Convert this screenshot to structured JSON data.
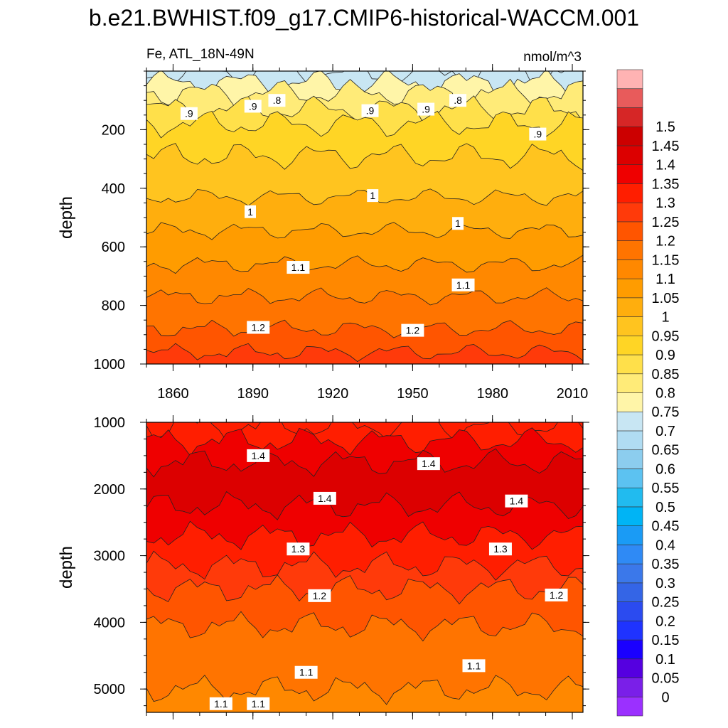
{
  "chart_data": {
    "type": "heatmap",
    "title": "b.e21.BWHIST.f09_g17.CMIP6-historical-WACCM.001",
    "variable_label": "Fe, ATL_18N-49N",
    "units": "nmol/m^3",
    "colorbar": {
      "levels": [
        "0",
        "0.05",
        "0.1",
        "0.15",
        "0.2",
        "0.25",
        "0.3",
        "0.35",
        "0.4",
        "0.45",
        "0.5",
        "0.55",
        "0.6",
        "0.65",
        "0.7",
        "0.75",
        "0.8",
        "0.85",
        "0.9",
        "0.95",
        "1",
        "1.05",
        "1.1",
        "1.15",
        "1.2",
        "1.25",
        "1.3",
        "1.35",
        "1.4",
        "1.45",
        "1.5"
      ],
      "colors": [
        "#9b30ff",
        "#7a1fe8",
        "#5500e0",
        "#1a00ff",
        "#1f33ff",
        "#2b4bf0",
        "#3465e6",
        "#3b78ea",
        "#2f8af5",
        "#1a9bf5",
        "#00b4f5",
        "#21bbef",
        "#5cc2f1",
        "#8ccdee",
        "#b0dcf2",
        "#c8e6f3",
        "#fff5a8",
        "#ffeb78",
        "#ffe04a",
        "#ffd525",
        "#ffc41f",
        "#ffae0d",
        "#ff9c00",
        "#ff8800",
        "#ff7400",
        "#ff5500",
        "#ff3a0a",
        "#ff1e00",
        "#ef0000",
        "#dc0000",
        "#cc0000",
        "#d62626",
        "#e85b5b",
        "#ffb3b3"
      ]
    },
    "x_axis": {
      "range": [
        1850,
        2014
      ],
      "ticks": [
        1860,
        1890,
        1920,
        1950,
        1980,
        2010
      ]
    },
    "panels": [
      {
        "name": "upper",
        "ylabel": "depth",
        "ylim": [
          0,
          1000
        ],
        "yticks": [
          200,
          400,
          600,
          800,
          1000
        ],
        "bands": [
          {
            "depth": 5,
            "value": 0.7
          },
          {
            "depth": 40,
            "value": 0.75
          },
          {
            "depth": 75,
            "value": 0.8
          },
          {
            "depth": 130,
            "value": 0.85
          },
          {
            "depth": 180,
            "value": 0.9
          },
          {
            "depth": 290,
            "value": 0.95
          },
          {
            "depth": 430,
            "value": 1.0
          },
          {
            "depth": 545,
            "value": 1.05
          },
          {
            "depth": 660,
            "value": 1.1
          },
          {
            "depth": 770,
            "value": 1.15
          },
          {
            "depth": 880,
            "value": 1.2
          },
          {
            "depth": 960,
            "value": 1.25
          }
        ],
        "contour_labels": [
          {
            "text": ".9",
            "x": 1866,
            "depth": 145
          },
          {
            "text": ".9",
            "x": 1890,
            "depth": 120
          },
          {
            "text": ".8",
            "x": 1899,
            "depth": 100
          },
          {
            "text": ".9",
            "x": 1934,
            "depth": 135
          },
          {
            "text": ".9",
            "x": 1955,
            "depth": 130
          },
          {
            "text": ".8",
            "x": 1967,
            "depth": 100
          },
          {
            "text": ".9",
            "x": 1997,
            "depth": 215
          },
          {
            "text": "1",
            "x": 1935,
            "depth": 425
          },
          {
            "text": "1",
            "x": 1889,
            "depth": 480
          },
          {
            "text": "1",
            "x": 1967,
            "depth": 520
          },
          {
            "text": "1.1",
            "x": 1907,
            "depth": 670
          },
          {
            "text": "1.1",
            "x": 1969,
            "depth": 730
          },
          {
            "text": "1.2",
            "x": 1892,
            "depth": 875
          },
          {
            "text": "1.2",
            "x": 1950,
            "depth": 885
          }
        ]
      },
      {
        "name": "lower",
        "ylabel": "depth",
        "ylim": [
          1000,
          5350
        ],
        "yticks": [
          1000,
          2000,
          3000,
          4000,
          5000
        ],
        "bands": [
          {
            "depth": 1060,
            "value": 1.3
          },
          {
            "depth": 1280,
            "value": 1.35
          },
          {
            "depth": 1600,
            "value": 1.4
          },
          {
            "depth": 2250,
            "value": 1.35
          },
          {
            "depth": 2700,
            "value": 1.3
          },
          {
            "depth": 3150,
            "value": 1.25
          },
          {
            "depth": 3500,
            "value": 1.2
          },
          {
            "depth": 4050,
            "value": 1.15
          },
          {
            "depth": 5000,
            "value": 1.1
          }
        ],
        "contour_labels": [
          {
            "text": "1.4",
            "x": 1892,
            "depth": 1500
          },
          {
            "text": "1.4",
            "x": 1956,
            "depth": 1620
          },
          {
            "text": "1.4",
            "x": 1917,
            "depth": 2140
          },
          {
            "text": "1.4",
            "x": 1989,
            "depth": 2180
          },
          {
            "text": "1.3",
            "x": 1907,
            "depth": 2900
          },
          {
            "text": "1.3",
            "x": 1983,
            "depth": 2900
          },
          {
            "text": "1.2",
            "x": 1915,
            "depth": 3600
          },
          {
            "text": "1.2",
            "x": 2004,
            "depth": 3590
          },
          {
            "text": "1.1",
            "x": 1910,
            "depth": 4750
          },
          {
            "text": "1.1",
            "x": 1973,
            "depth": 4650
          },
          {
            "text": "1.1",
            "x": 1878,
            "depth": 5220
          },
          {
            "text": "1.1",
            "x": 1892,
            "depth": 5220
          }
        ]
      }
    ]
  }
}
